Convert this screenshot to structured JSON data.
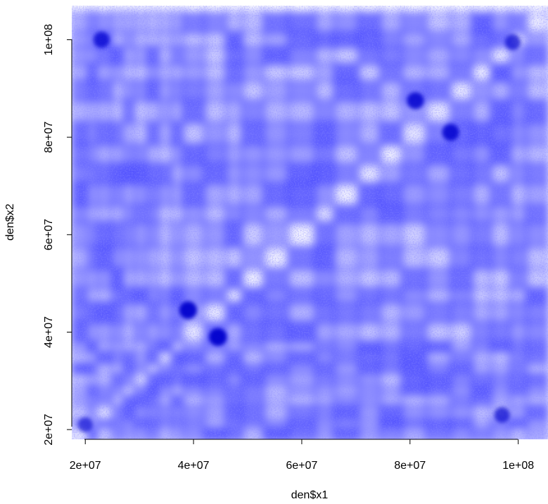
{
  "chart_data": {
    "type": "heatmap",
    "description_colors": {
      "low": "#ffffff",
      "high": "#0000ff"
    },
    "xlabel": "den$x1",
    "ylabel": "den$x2",
    "xlim": [
      17500000,
      105500000
    ],
    "ylim": [
      18000000,
      107000000
    ],
    "x_ticks": [
      {
        "value": 20000000,
        "label": "2e+07"
      },
      {
        "value": 40000000,
        "label": "4e+07"
      },
      {
        "value": 60000000,
        "label": "6e+07"
      },
      {
        "value": 80000000,
        "label": "8e+07"
      },
      {
        "value": 100000000,
        "label": "1e+08"
      }
    ],
    "y_ticks": [
      {
        "value": 20000000,
        "label": "2e+07"
      },
      {
        "value": 40000000,
        "label": "4e+07"
      },
      {
        "value": 60000000,
        "label": "6e+07"
      },
      {
        "value": 80000000,
        "label": "8e+07"
      },
      {
        "value": 100000000,
        "label": "1e+08"
      }
    ],
    "boundaries": [
      17500000,
      20500000,
      22000000,
      25000000,
      27000000,
      29000000,
      31500000,
      33500000,
      36000000,
      38000000,
      42000000,
      46000000,
      49000000,
      53000000,
      57500000,
      62500000,
      66000000,
      70500000,
      74500000,
      78500000,
      83000000,
      87500000,
      91500000,
      95000000,
      98500000,
      101500000,
      105500000
    ],
    "hotspots": [
      {
        "x": 39000000,
        "y": 44500000,
        "intensity": 0.95
      },
      {
        "x": 44500000,
        "y": 39000000,
        "intensity": 0.95
      },
      {
        "x": 81000000,
        "y": 87500000,
        "intensity": 0.85
      },
      {
        "x": 87500000,
        "y": 81000000,
        "intensity": 0.85
      },
      {
        "x": 99000000,
        "y": 99500000,
        "intensity": 0.7
      },
      {
        "x": 23000000,
        "y": 100000000,
        "intensity": 0.75
      },
      {
        "x": 97000000,
        "y": 23000000,
        "intensity": 0.7
      },
      {
        "x": 20000000,
        "y": 21000000,
        "intensity": 0.6
      }
    ],
    "grid": false,
    "legend": "none"
  }
}
